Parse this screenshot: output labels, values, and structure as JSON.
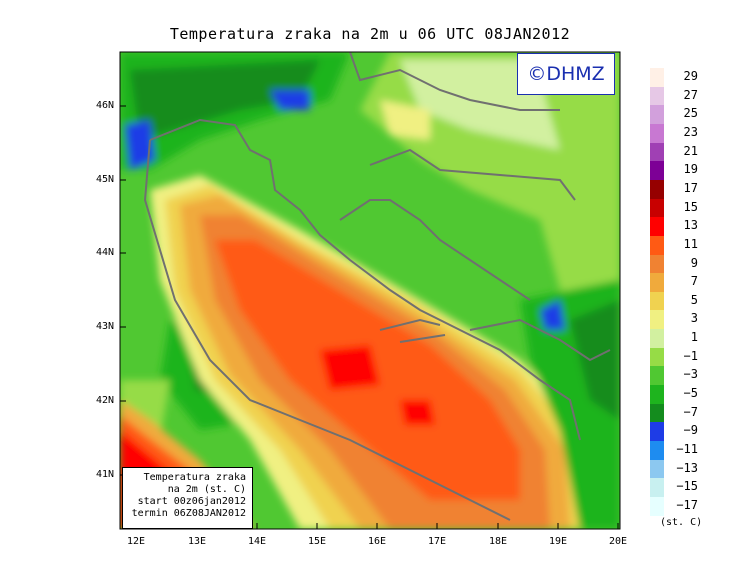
{
  "title": "Temperatura zraka na 2m u 06 UTC 08JAN2012",
  "logo": "©DHMZ",
  "info": {
    "line1": "Temperatura zraka",
    "line2": "na 2m (st. C)",
    "line3": "start 00z06jan2012",
    "line4": "termin 06Z08JAN2012"
  },
  "legend": {
    "labels": [
      "29",
      "27",
      "25",
      "23",
      "21",
      "19",
      "17",
      "15",
      "13",
      "11",
      "9",
      "7",
      "5",
      "3",
      "1",
      "−1",
      "−3",
      "−5",
      "−7",
      "−9",
      "−11",
      "−13",
      "−15",
      "−17"
    ],
    "colors": [
      "#fff0e6",
      "#e6c8e6",
      "#d2a0dc",
      "#c878d2",
      "#a040b4",
      "#7d0096",
      "#960000",
      "#c80000",
      "#ff0000",
      "#ff5a14",
      "#f08232",
      "#f0aa3c",
      "#f0d250",
      "#f0f082",
      "#d2f0a0",
      "#96dc46",
      "#50c832",
      "#1eb41e",
      "#148c1e",
      "#1e3ce6",
      "#1e8cf0",
      "#8cc8f0",
      "#c8f0f0",
      "#e6ffff"
    ],
    "unit": "(st. C)"
  },
  "axes": {
    "lat_ticks": [
      "46N",
      "45N",
      "44N",
      "43N",
      "42N",
      "41N"
    ],
    "lon_ticks": [
      "12E",
      "13E",
      "14E",
      "15E",
      "16E",
      "17E",
      "18E",
      "19E",
      "20E"
    ]
  }
}
